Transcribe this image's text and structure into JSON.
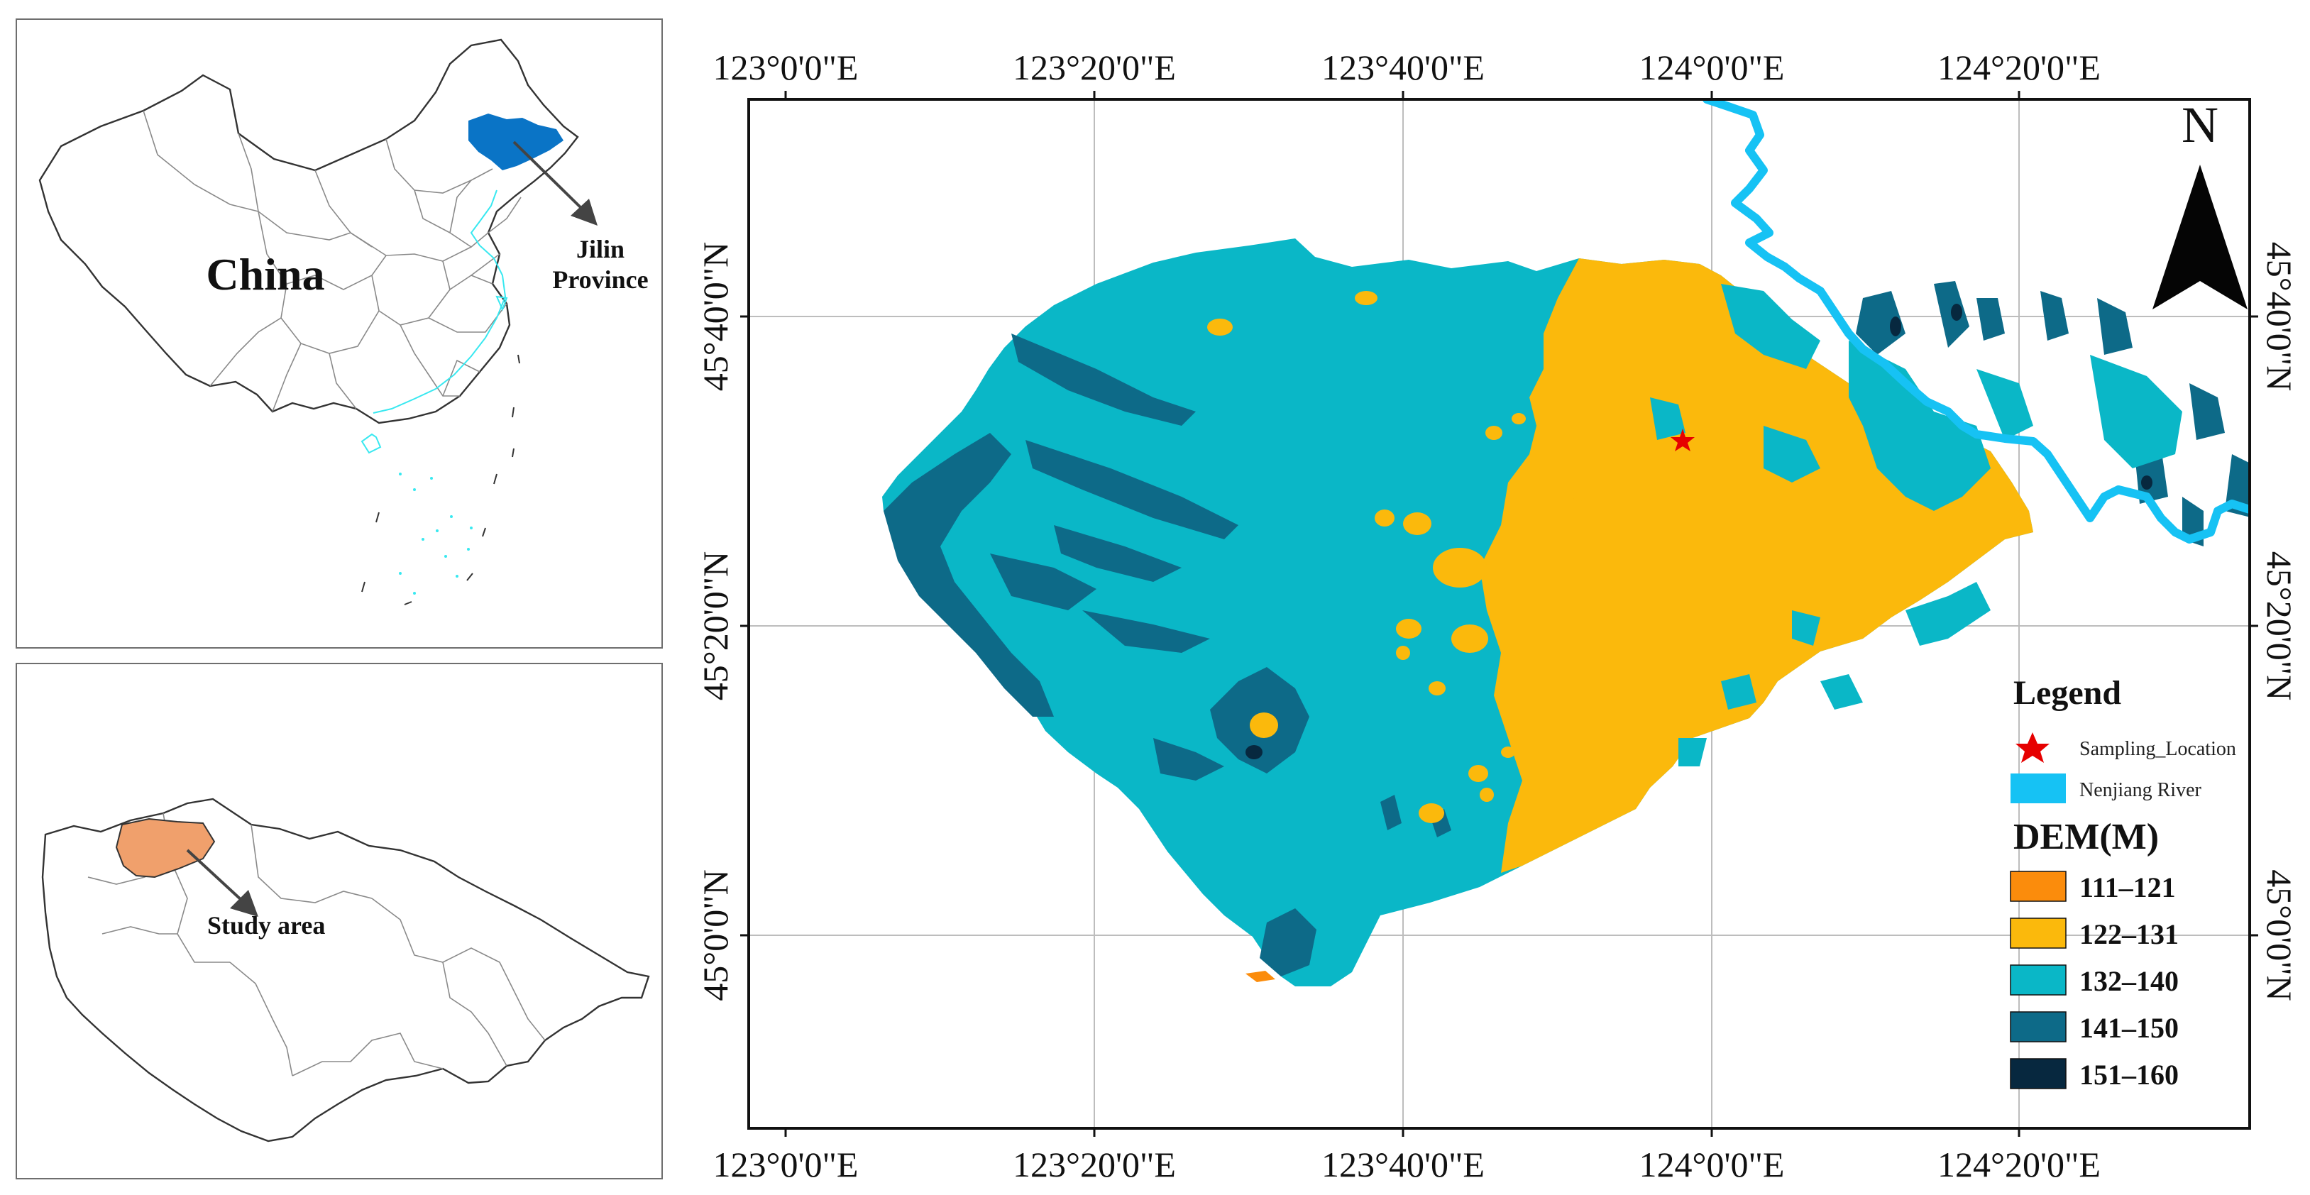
{
  "inset_china": {
    "country_label": "China",
    "province_label_line1": "Jilin",
    "province_label_line2": "Province",
    "highlight_color": "#0a74c6",
    "coast_color": "#38e8f0"
  },
  "inset_jilin": {
    "study_area_label": "Study area",
    "study_area_color": "#f0a06c"
  },
  "main_map": {
    "top_lon_labels": [
      "123°0'0\"E",
      "123°20'0\"E",
      "123°40'0\"E",
      "124°0'0\"E",
      "124°20'0\"E"
    ],
    "bottom_lon_labels": [
      "123°0'0\"E",
      "123°20'0\"E",
      "123°40'0\"E",
      "124°0'0\"E",
      "124°20'0\"E"
    ],
    "left_lat_labels": [
      "45°40'0\"N",
      "45°20'0\"N",
      "45°0'0\"N"
    ],
    "right_lat_labels": [
      "45°40'0\"N",
      "45°20'0\"N",
      "45°0'0\"N"
    ],
    "north_label": "N",
    "river_color": "#16c2f4"
  },
  "legend": {
    "title": "Legend",
    "sampling_label": "Sampling_Location",
    "river_label": "Nenjiang River",
    "dem_title": "DEM(M)",
    "dem_classes": [
      {
        "label": "111–121",
        "color": "#fb8c0c"
      },
      {
        "label": "122–131",
        "color": "#fbb90c"
      },
      {
        "label": "132–140",
        "color": "#0ab7c7"
      },
      {
        "label": "141–150",
        "color": "#0d6a88"
      },
      {
        "label": "151–160",
        "color": "#07283f"
      }
    ]
  }
}
